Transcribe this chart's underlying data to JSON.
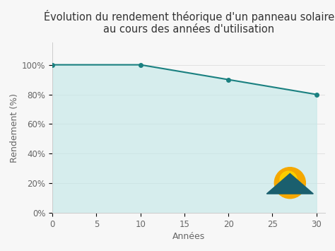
{
  "title_line1": "Évolution du rendement théorique d'un panneau solaire",
  "title_line2": "au cours des années d'utilisation",
  "xlabel": "Années",
  "ylabel": "Rendement (%)",
  "x_data": [
    0,
    10,
    20,
    30
  ],
  "y_data": [
    100,
    100,
    90,
    80
  ],
  "line_color": "#1a8080",
  "fill_color_top": "#a8d8d8",
  "fill_color_bottom": "#d8f0f0",
  "fill_alpha": 0.7,
  "marker_color": "#1a8080",
  "marker_size": 4,
  "xlim": [
    0,
    31
  ],
  "ylim": [
    0,
    115
  ],
  "xticks": [
    0,
    5,
    10,
    15,
    20,
    25,
    30
  ],
  "yticks": [
    0,
    20,
    40,
    60,
    80,
    100
  ],
  "ytick_labels": [
    "0%",
    "20%",
    "40%",
    "60%",
    "80%",
    "100%"
  ],
  "background_color": "#f7f7f7",
  "grid_color": "#dddddd",
  "sun_color_inner": "#ffd700",
  "sun_color_outer": "#f5a800",
  "panel_color": "#1a5f6e",
  "title_fontsize": 10.5,
  "axis_label_fontsize": 9,
  "tick_fontsize": 8.5
}
